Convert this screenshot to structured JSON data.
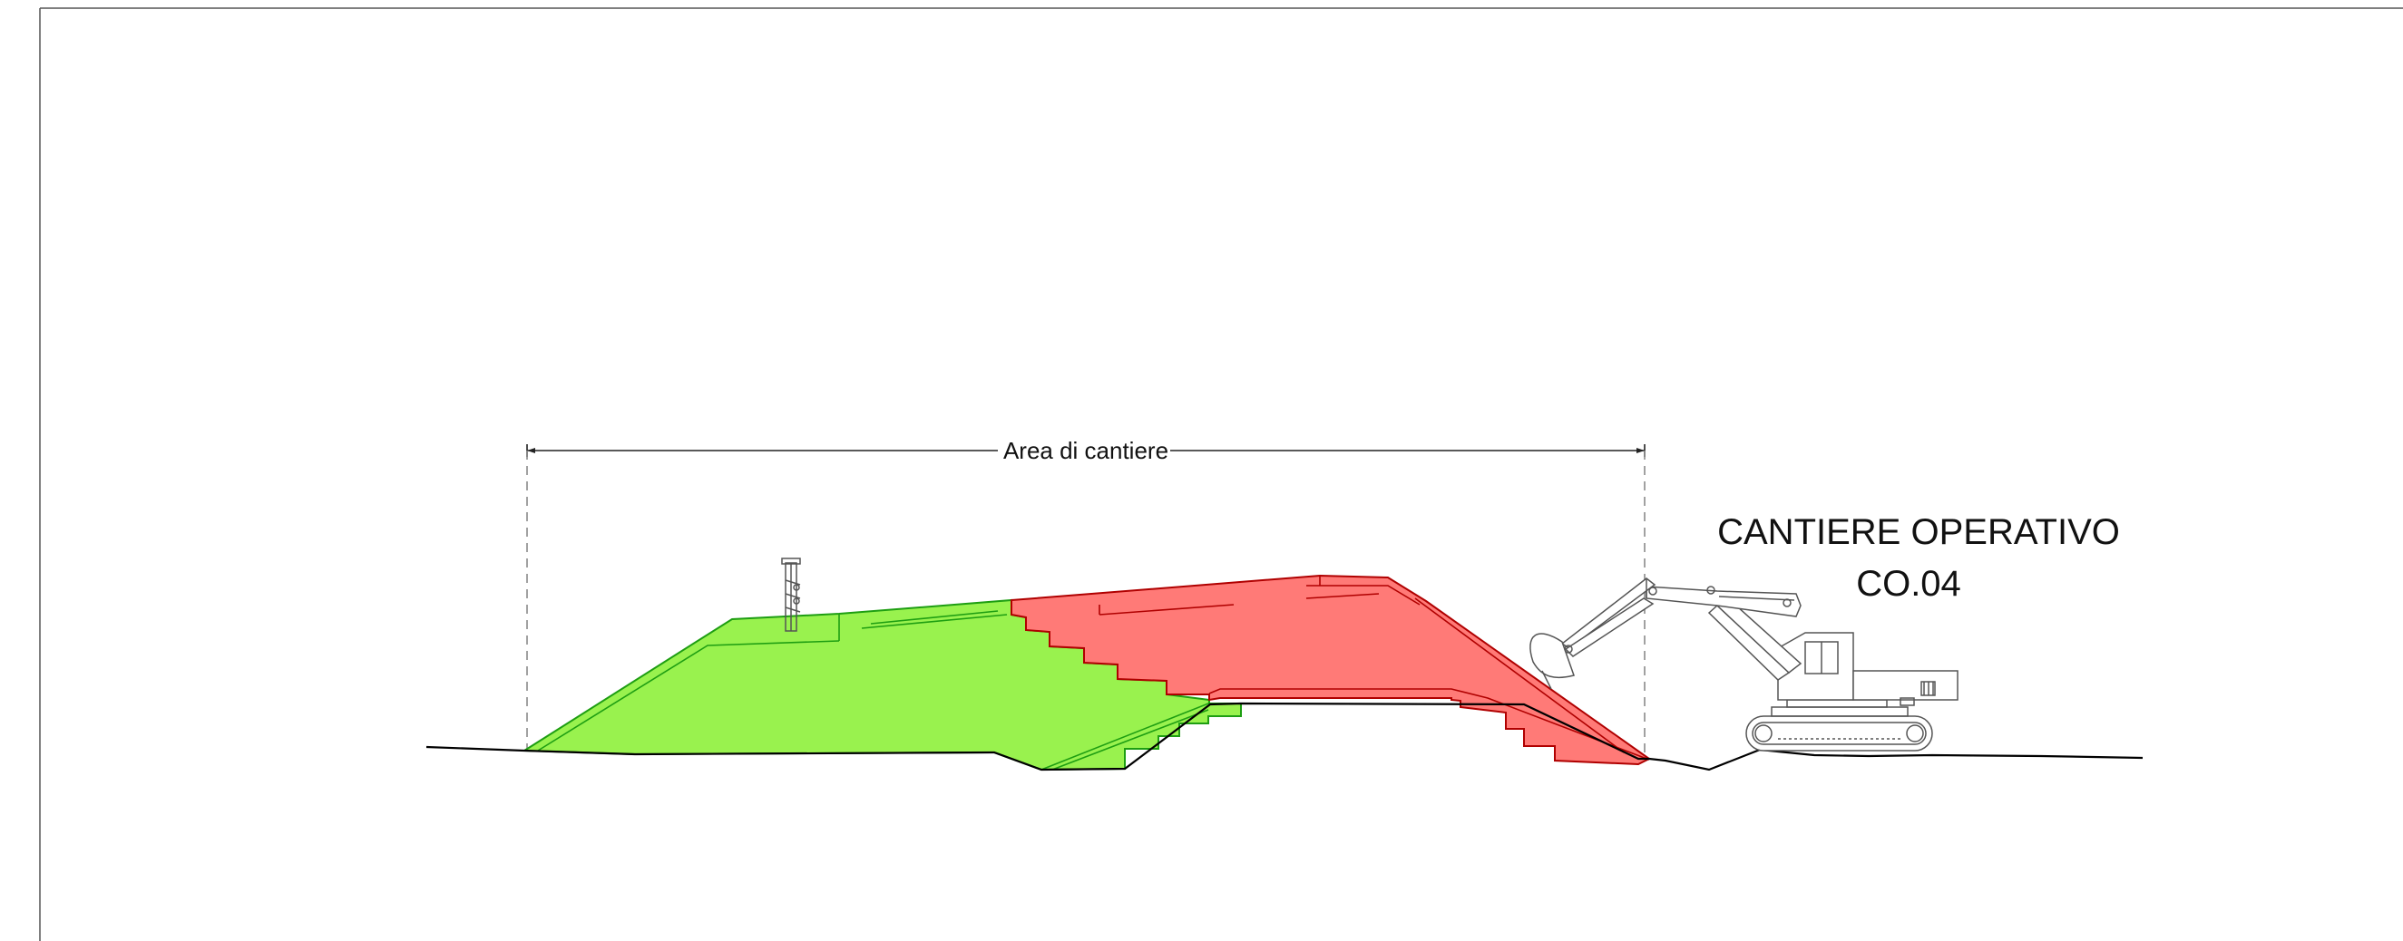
{
  "diagram": {
    "area_label": "Area di cantiere",
    "site_title": "CANTIERE OPERATIVO",
    "site_code": "CO.04"
  },
  "colors": {
    "fill_area": "#99f24e",
    "fill_excavation": "#ff7a77",
    "stroke_area": "#1e9e12",
    "stroke_excavation": "#b00000",
    "ground_line": "#000000",
    "dashed_line": "#8a8a8a",
    "equipment": "#555555"
  },
  "icons": {
    "excavator": "excavator-icon",
    "drilling_rig": "drilling-rig-icon"
  }
}
